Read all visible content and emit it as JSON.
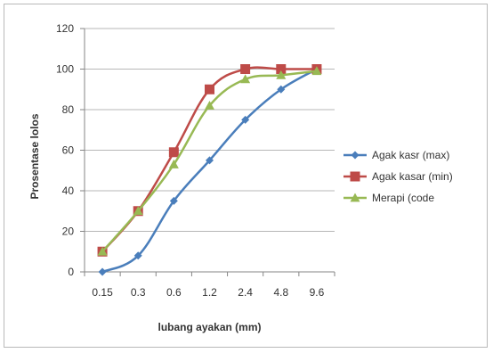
{
  "chart_data": {
    "type": "line",
    "title": "",
    "xlabel": "lubang ayakan (mm)",
    "ylabel": "Prosentase lolos",
    "categories": [
      "0.15",
      "0.3",
      "0.6",
      "1.2",
      "2.4",
      "4.8",
      "9.6"
    ],
    "ylim": [
      0,
      120
    ],
    "yticks": [
      0,
      20,
      40,
      60,
      80,
      100,
      120
    ],
    "grid": true,
    "legend_position": "right",
    "series": [
      {
        "name": "Agak kasr (max)",
        "color": "#4a7ebb",
        "marker": "diamond",
        "values": [
          0,
          8,
          35,
          55,
          75,
          90,
          100
        ]
      },
      {
        "name": "Agak kasar (min)",
        "color": "#be4b48",
        "marker": "square",
        "values": [
          10,
          30,
          59,
          90,
          100,
          100,
          100
        ]
      },
      {
        "name": "Merapi (code",
        "color": "#98b954",
        "marker": "triangle",
        "values": [
          10,
          30,
          53,
          82,
          95,
          97,
          99
        ]
      }
    ]
  }
}
